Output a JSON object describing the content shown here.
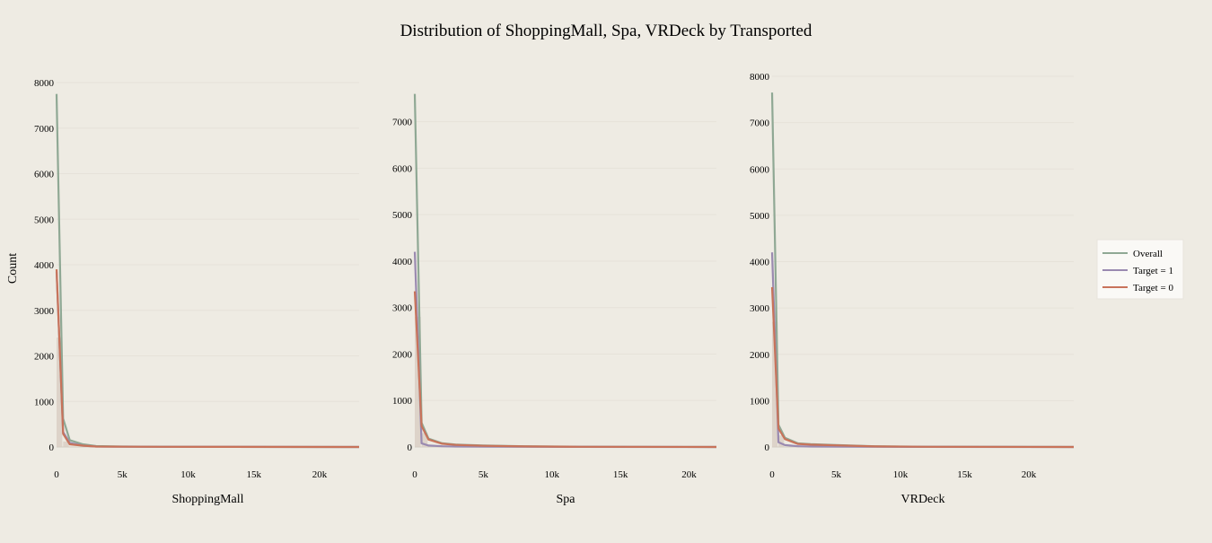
{
  "title": "Distribution of ShoppingMall, Spa, VRDeck by Transported",
  "ylabel": "Count",
  "legend": {
    "position": "right",
    "items": [
      {
        "label": "Overall",
        "color": "#8fa894"
      },
      {
        "label": "Target = 1",
        "color": "#9a8ab0"
      },
      {
        "label": "Target = 0",
        "color": "#c8735a"
      }
    ]
  },
  "colors": {
    "background": "#eeebe3",
    "grid": "#e6e2d9",
    "histogram_fill": "#d9cfc4",
    "legend_bg": "#faf9f6"
  },
  "chart_data": [
    {
      "type": "line",
      "xlabel": "ShoppingMall",
      "ylim": [
        0,
        8000
      ],
      "xlim": [
        0,
        23000
      ],
      "yticks": [
        0,
        1000,
        2000,
        3000,
        4000,
        5000,
        6000,
        7000,
        8000
      ],
      "ytick_labels": [
        "0",
        "1000",
        "2000",
        "3000",
        "4000",
        "5000",
        "6000",
        "7000",
        "8000"
      ],
      "xticks": [
        0,
        5000,
        10000,
        15000,
        20000
      ],
      "xtick_labels": [
        "0",
        "5k",
        "10k",
        "15k",
        "20k"
      ],
      "histogram": {
        "x": [
          0,
          500
        ],
        "values": [
          2400,
          120
        ]
      },
      "series": [
        {
          "name": "Overall",
          "x": [
            0,
            500,
            1000,
            2000,
            3000,
            5000,
            8000,
            12000,
            23000
          ],
          "values": [
            7750,
            620,
            150,
            60,
            20,
            10,
            5,
            2,
            0
          ]
        },
        {
          "name": "Target = 1",
          "x": [
            0,
            500,
            1000,
            2000,
            3000,
            5000,
            8000,
            12000,
            23000
          ],
          "values": [
            3850,
            330,
            90,
            30,
            10,
            5,
            2,
            1,
            0
          ]
        },
        {
          "name": "Target = 0",
          "x": [
            0,
            500,
            1000,
            2000,
            3000,
            5000,
            8000,
            12000,
            23000
          ],
          "values": [
            3900,
            290,
            60,
            30,
            10,
            5,
            3,
            1,
            0
          ]
        }
      ]
    },
    {
      "type": "line",
      "xlabel": "Spa",
      "ylim": [
        0,
        7650
      ],
      "xlim": [
        0,
        22000
      ],
      "yticks": [
        0,
        1000,
        2000,
        3000,
        4000,
        5000,
        6000,
        7000
      ],
      "ytick_labels": [
        "0",
        "1000",
        "2000",
        "3000",
        "4000",
        "5000",
        "6000",
        "7000"
      ],
      "xticks": [
        0,
        5000,
        10000,
        15000,
        20000
      ],
      "xtick_labels": [
        "0",
        "5k",
        "10k",
        "15k",
        "20k"
      ],
      "histogram": {
        "x": [
          0,
          500
        ],
        "values": [
          2800,
          300
        ]
      },
      "series": [
        {
          "name": "Overall",
          "x": [
            0,
            500,
            1000,
            2000,
            3000,
            5000,
            8000,
            12000,
            22000
          ],
          "values": [
            7600,
            520,
            180,
            80,
            50,
            30,
            15,
            5,
            0
          ]
        },
        {
          "name": "Target = 1",
          "x": [
            0,
            500,
            1000,
            2000,
            3000,
            5000,
            8000,
            12000,
            22000
          ],
          "values": [
            4200,
            80,
            30,
            15,
            10,
            5,
            3,
            1,
            0
          ]
        },
        {
          "name": "Target = 0",
          "x": [
            0,
            500,
            1000,
            2000,
            3000,
            5000,
            8000,
            12000,
            22000
          ],
          "values": [
            3350,
            450,
            160,
            70,
            45,
            25,
            12,
            4,
            0
          ]
        }
      ]
    },
    {
      "type": "line",
      "xlabel": "VRDeck",
      "ylim": [
        0,
        8000
      ],
      "xlim": [
        0,
        23500
      ],
      "yticks": [
        0,
        1000,
        2000,
        3000,
        4000,
        5000,
        6000,
        7000,
        8000
      ],
      "ytick_labels": [
        "0",
        "1000",
        "2000",
        "3000",
        "4000",
        "5000",
        "6000",
        "7000",
        "8000"
      ],
      "xticks": [
        0,
        5000,
        10000,
        15000,
        20000
      ],
      "xtick_labels": [
        "0",
        "5k",
        "10k",
        "15k",
        "20k"
      ],
      "histogram": {
        "x": [
          0,
          500
        ],
        "values": [
          2700,
          250
        ]
      },
      "series": [
        {
          "name": "Overall",
          "x": [
            0,
            500,
            1000,
            2000,
            3000,
            5000,
            8000,
            12000,
            23500
          ],
          "values": [
            7650,
            480,
            200,
            80,
            60,
            40,
            15,
            5,
            0
          ]
        },
        {
          "name": "Target = 1",
          "x": [
            0,
            500,
            1000,
            2000,
            3000,
            5000,
            8000,
            12000,
            23500
          ],
          "values": [
            4200,
            100,
            40,
            15,
            10,
            5,
            3,
            1,
            0
          ]
        },
        {
          "name": "Target = 0",
          "x": [
            0,
            500,
            1000,
            2000,
            3000,
            5000,
            8000,
            12000,
            23500
          ],
          "values": [
            3450,
            400,
            170,
            65,
            50,
            35,
            12,
            4,
            0
          ]
        }
      ]
    }
  ]
}
